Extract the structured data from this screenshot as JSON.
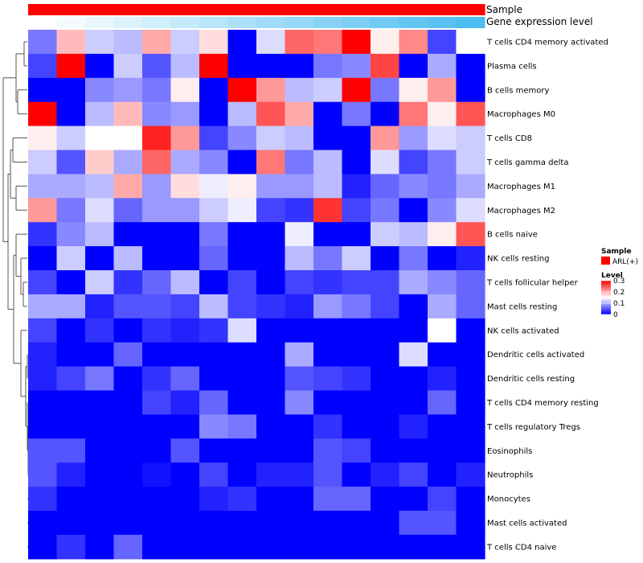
{
  "chart_data": {
    "type": "heatmap",
    "title": "",
    "annotations": [
      {
        "name": "Sample",
        "colors": [
          "#ff0000"
        ]
      },
      {
        "name": "Gene expression level",
        "colors": [
          "#ffffff",
          "#f3fbfe",
          "#e7f7fd",
          "#dcf3fc",
          "#d0eefb",
          "#c4eafa",
          "#b8e6f9",
          "#acdff8",
          "#a0dbf7",
          "#94d7f6",
          "#88d2f5",
          "#7dcef4",
          "#71caf3",
          "#65c5f2",
          "#59c1f1",
          "#4dbdef"
        ]
      }
    ],
    "rows": [
      "T cells CD4 memory activated",
      "Plasma cells",
      "B cells memory",
      "Macrophages M0",
      "T cells CD8",
      "T cells gamma delta",
      "Macrophages M1",
      "Macrophages M2",
      "B cells naive",
      "NK cells resting",
      "T cells follicular helper",
      "Mast cells resting",
      "NK cells activated",
      "Dendritic cells activated",
      "Dendritic cells resting",
      "T cells CD4 memory resting",
      "T cells regulatory  Tregs",
      "Eosinophils",
      "Neutrophils",
      "Monocytes",
      "Mast cells activated",
      "T cells CD4 naive"
    ],
    "num_columns": 16,
    "values": [
      [
        0.07,
        0.19,
        0.12,
        0.11,
        0.2,
        0.12,
        0.17,
        0.0,
        0.13,
        0.24,
        0.23,
        0.3,
        0.16,
        0.22,
        0.04,
        0.15
      ],
      [
        0.04,
        0.3,
        0.0,
        0.12,
        0.05,
        0.11,
        0.3,
        0.0,
        0.0,
        0.0,
        0.07,
        0.08,
        0.26,
        0.0,
        0.1,
        0.0
      ],
      [
        0.0,
        0.0,
        0.08,
        0.09,
        0.07,
        0.16,
        0.0,
        0.3,
        0.21,
        0.11,
        0.12,
        0.3,
        0.07,
        0.16,
        0.21,
        0.0
      ],
      [
        0.3,
        0.0,
        0.11,
        0.19,
        0.08,
        0.09,
        0.0,
        0.11,
        0.25,
        0.2,
        0.0,
        0.07,
        0.0,
        0.23,
        0.16,
        0.25
      ],
      [
        0.16,
        0.12,
        0.15,
        0.15,
        0.28,
        0.21,
        0.04,
        0.08,
        0.12,
        0.11,
        0.0,
        0.0,
        0.21,
        0.09,
        0.13,
        0.12
      ],
      [
        0.12,
        0.05,
        0.18,
        0.1,
        0.24,
        0.1,
        0.08,
        0.0,
        0.23,
        0.07,
        0.11,
        0.0,
        0.13,
        0.04,
        0.07,
        0.12
      ],
      [
        0.1,
        0.1,
        0.11,
        0.2,
        0.09,
        0.17,
        0.14,
        0.16,
        0.09,
        0.09,
        0.11,
        0.02,
        0.06,
        0.08,
        0.07,
        0.1
      ],
      [
        0.21,
        0.07,
        0.13,
        0.06,
        0.09,
        0.09,
        0.12,
        0.14,
        0.04,
        0.03,
        0.27,
        0.04,
        0.07,
        0.0,
        0.08,
        0.13
      ],
      [
        0.03,
        0.08,
        0.11,
        0.0,
        0.0,
        0.0,
        0.07,
        0.0,
        0.0,
        0.14,
        0.0,
        0.0,
        0.12,
        0.11,
        0.16,
        0.25
      ],
      [
        0.0,
        0.12,
        0.0,
        0.11,
        0.0,
        0.0,
        0.06,
        0.0,
        0.0,
        0.11,
        0.07,
        0.12,
        0.0,
        0.07,
        0.0,
        0.02
      ],
      [
        0.04,
        0.0,
        0.12,
        0.03,
        0.06,
        0.11,
        0.0,
        0.04,
        0.0,
        0.04,
        0.03,
        0.04,
        0.04,
        0.1,
        0.08,
        0.06
      ],
      [
        0.1,
        0.1,
        0.02,
        0.05,
        0.05,
        0.04,
        0.11,
        0.04,
        0.03,
        0.02,
        0.09,
        0.07,
        0.04,
        0.0,
        0.1,
        0.06
      ],
      [
        0.04,
        0.0,
        0.03,
        0.0,
        0.03,
        0.02,
        0.03,
        0.13,
        0.0,
        0.0,
        0.0,
        0.0,
        0.0,
        0.0,
        0.15,
        0.0
      ],
      [
        0.02,
        0.0,
        0.0,
        0.06,
        0.0,
        0.0,
        0.0,
        0.0,
        0.0,
        0.1,
        0.0,
        0.0,
        0.0,
        0.13,
        0.0,
        0.0
      ],
      [
        0.02,
        0.04,
        0.07,
        0.0,
        0.03,
        0.06,
        0.0,
        0.0,
        0.0,
        0.05,
        0.04,
        0.03,
        0.0,
        0.0,
        0.02,
        0.0
      ],
      [
        0.0,
        0.0,
        0.0,
        0.0,
        0.04,
        0.02,
        0.06,
        0.0,
        0.0,
        0.08,
        0.0,
        0.0,
        0.0,
        0.0,
        0.06,
        0.0
      ],
      [
        0.0,
        0.0,
        0.0,
        0.0,
        0.0,
        0.0,
        0.08,
        0.07,
        0.0,
        0.0,
        0.03,
        0.0,
        0.0,
        0.02,
        0.0,
        0.0
      ],
      [
        0.05,
        0.05,
        0.0,
        0.0,
        0.0,
        0.05,
        0.0,
        0.0,
        0.0,
        0.0,
        0.05,
        0.04,
        0.0,
        0.0,
        0.0,
        0.0
      ],
      [
        0.05,
        0.02,
        0.0,
        0.0,
        0.01,
        0.0,
        0.04,
        0.0,
        0.02,
        0.02,
        0.05,
        0.0,
        0.02,
        0.04,
        0.0,
        0.02
      ],
      [
        0.03,
        0.0,
        0.0,
        0.0,
        0.0,
        0.0,
        0.02,
        0.03,
        0.0,
        0.0,
        0.06,
        0.06,
        0.0,
        0.0,
        0.04,
        0.0
      ],
      [
        0.0,
        0.0,
        0.0,
        0.0,
        0.0,
        0.0,
        0.0,
        0.0,
        0.0,
        0.0,
        0.0,
        0.0,
        0.0,
        0.05,
        0.05,
        0.0
      ],
      [
        0.0,
        0.03,
        0.0,
        0.06,
        0.0,
        0.0,
        0.0,
        0.0,
        0.0,
        0.0,
        0.0,
        0.0,
        0.0,
        0.0,
        0.0,
        0.0
      ]
    ],
    "color_scale": {
      "min": 0,
      "max": 0.3,
      "low": "#0000ff",
      "mid": "#ffffff",
      "high": "#ff0000"
    },
    "legend": {
      "sample_title": "Sample",
      "sample_entries": [
        {
          "label": "ARL(+)",
          "color": "#ff0000"
        }
      ],
      "level_title": "Level",
      "level_ticks": [
        {
          "label": "0.3",
          "value": 0.3
        },
        {
          "label": "0.2",
          "value": 0.2
        },
        {
          "label": "0.1",
          "value": 0.1
        },
        {
          "label": "0",
          "value": 0
        }
      ],
      "placement": "right"
    },
    "dendrogram": "rows"
  }
}
